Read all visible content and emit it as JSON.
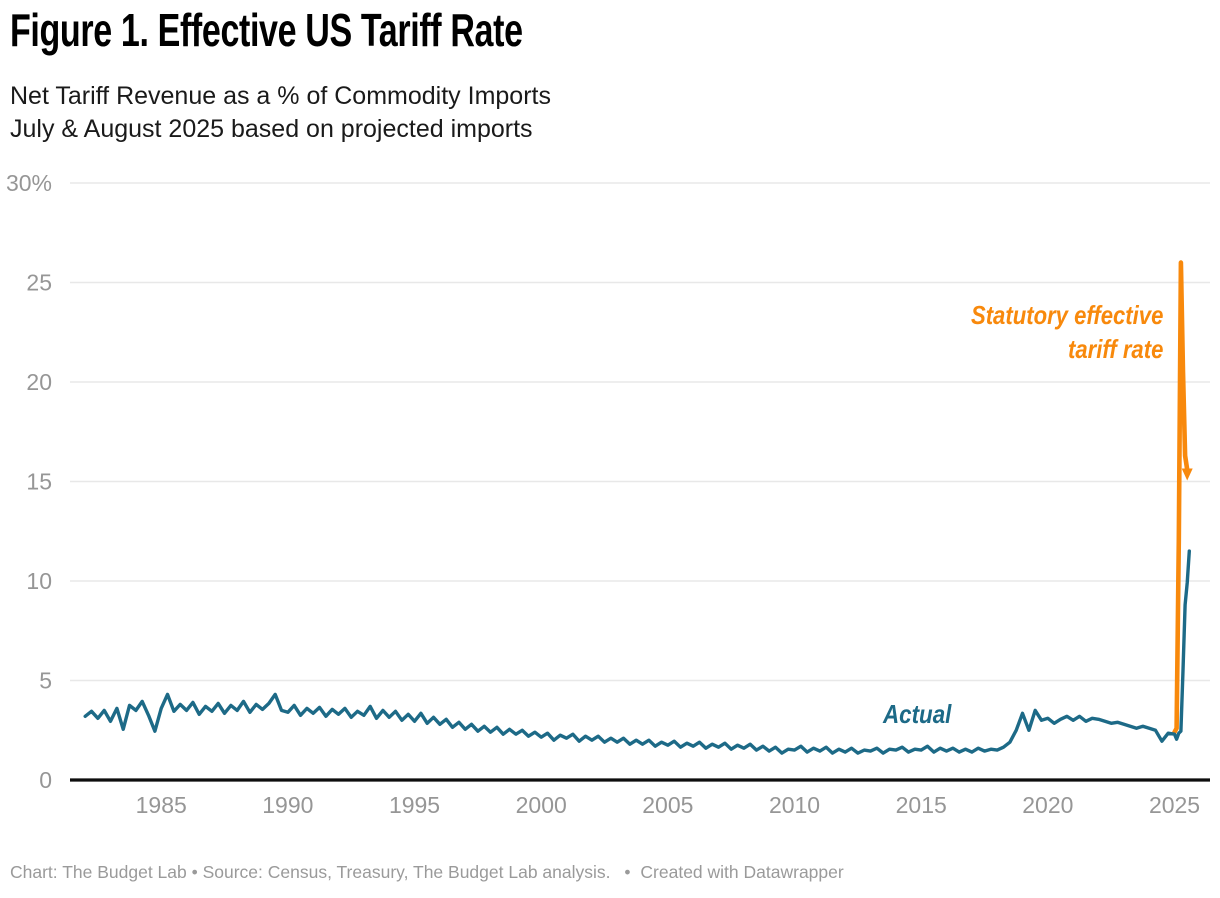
{
  "header": {
    "title": "Figure 1. Effective US Tariff Rate",
    "subtitle_line1": "Net Tariff Revenue as a % of Commodity Imports",
    "subtitle_line2": "July & August 2025 based on projected imports"
  },
  "annotations": {
    "statutory_line1": "Statutory effective",
    "statutory_line2": "tariff rate",
    "actual": "Actual"
  },
  "footer": {
    "credit_and_source": "Chart: The Budget Lab • Source: Census, Treasury, The Budget Lab analysis.",
    "bullet": "•",
    "datawrapper": "Created with Datawrapper"
  },
  "colors": {
    "actual": "#1d6a87",
    "statutory": "#f8890c",
    "grid": "#e8e8e8",
    "baseline": "#0d0d0d",
    "axis_text": "#969696",
    "title": "#000000",
    "subtitle": "#1a1a1a",
    "footer_text": "#9a9a9a"
  },
  "chart_data": {
    "type": "line",
    "title": "Figure 1. Effective US Tariff Rate",
    "subtitle": "Net Tariff Revenue as a % of Commodity Imports; July & August 2025 based on projected imports",
    "xlabel": "",
    "ylabel": "",
    "grid": "horizontal",
    "legend_position": "inline-annotations",
    "xlim": [
      1981.4,
      2026.4
    ],
    "ylim": [
      0,
      30
    ],
    "x_ticks": [
      1985,
      1990,
      1995,
      2000,
      2005,
      2010,
      2015,
      2020,
      2025
    ],
    "y_ticks": [
      {
        "value": 0,
        "label": "0"
      },
      {
        "value": 5,
        "label": "5"
      },
      {
        "value": 10,
        "label": "10"
      },
      {
        "value": 15,
        "label": "15"
      },
      {
        "value": 20,
        "label": "20"
      },
      {
        "value": 25,
        "label": "25"
      },
      {
        "value": 30,
        "label": "30%"
      }
    ],
    "series": [
      {
        "name": "Statutory effective tariff rate",
        "color": "#f8890c",
        "arrow_end": true,
        "points": [
          [
            2025.0,
            2.4
          ],
          [
            2025.083,
            2.6
          ],
          [
            2025.167,
            12.0
          ],
          [
            2025.25,
            26.0
          ],
          [
            2025.333,
            20.5
          ],
          [
            2025.417,
            16.3
          ],
          [
            2025.5,
            15.6
          ]
        ]
      },
      {
        "name": "Actual",
        "color": "#1d6a87",
        "arrow_end": false,
        "points": [
          [
            1982.0,
            3.2
          ],
          [
            1982.25,
            3.45
          ],
          [
            1982.5,
            3.1
          ],
          [
            1982.75,
            3.5
          ],
          [
            1983.0,
            2.95
          ],
          [
            1983.25,
            3.6
          ],
          [
            1983.5,
            2.55
          ],
          [
            1983.75,
            3.75
          ],
          [
            1984.0,
            3.5
          ],
          [
            1984.25,
            3.95
          ],
          [
            1984.5,
            3.25
          ],
          [
            1984.75,
            2.45
          ],
          [
            1985.0,
            3.6
          ],
          [
            1985.25,
            4.3
          ],
          [
            1985.5,
            3.45
          ],
          [
            1985.75,
            3.8
          ],
          [
            1986.0,
            3.5
          ],
          [
            1986.25,
            3.9
          ],
          [
            1986.5,
            3.3
          ],
          [
            1986.75,
            3.7
          ],
          [
            1987.0,
            3.45
          ],
          [
            1987.25,
            3.85
          ],
          [
            1987.5,
            3.35
          ],
          [
            1987.75,
            3.75
          ],
          [
            1988.0,
            3.5
          ],
          [
            1988.25,
            3.95
          ],
          [
            1988.5,
            3.4
          ],
          [
            1988.75,
            3.8
          ],
          [
            1989.0,
            3.55
          ],
          [
            1989.25,
            3.85
          ],
          [
            1989.5,
            4.3
          ],
          [
            1989.75,
            3.5
          ],
          [
            1990.0,
            3.4
          ],
          [
            1990.25,
            3.75
          ],
          [
            1990.5,
            3.25
          ],
          [
            1990.75,
            3.6
          ],
          [
            1991.0,
            3.35
          ],
          [
            1991.25,
            3.65
          ],
          [
            1991.5,
            3.2
          ],
          [
            1991.75,
            3.55
          ],
          [
            1992.0,
            3.3
          ],
          [
            1992.25,
            3.6
          ],
          [
            1992.5,
            3.15
          ],
          [
            1992.75,
            3.45
          ],
          [
            1993.0,
            3.25
          ],
          [
            1993.25,
            3.7
          ],
          [
            1993.5,
            3.1
          ],
          [
            1993.75,
            3.5
          ],
          [
            1994.0,
            3.15
          ],
          [
            1994.25,
            3.45
          ],
          [
            1994.5,
            3.0
          ],
          [
            1994.75,
            3.3
          ],
          [
            1995.0,
            2.95
          ],
          [
            1995.25,
            3.35
          ],
          [
            1995.5,
            2.85
          ],
          [
            1995.75,
            3.15
          ],
          [
            1996.0,
            2.8
          ],
          [
            1996.25,
            3.05
          ],
          [
            1996.5,
            2.65
          ],
          [
            1996.75,
            2.9
          ],
          [
            1997.0,
            2.55
          ],
          [
            1997.25,
            2.8
          ],
          [
            1997.5,
            2.45
          ],
          [
            1997.75,
            2.7
          ],
          [
            1998.0,
            2.4
          ],
          [
            1998.25,
            2.65
          ],
          [
            1998.5,
            2.3
          ],
          [
            1998.75,
            2.55
          ],
          [
            1999.0,
            2.3
          ],
          [
            1999.25,
            2.5
          ],
          [
            1999.5,
            2.2
          ],
          [
            1999.75,
            2.4
          ],
          [
            2000.0,
            2.15
          ],
          [
            2000.25,
            2.35
          ],
          [
            2000.5,
            2.0
          ],
          [
            2000.75,
            2.25
          ],
          [
            2001.0,
            2.1
          ],
          [
            2001.25,
            2.3
          ],
          [
            2001.5,
            1.95
          ],
          [
            2001.75,
            2.2
          ],
          [
            2002.0,
            2.0
          ],
          [
            2002.25,
            2.2
          ],
          [
            2002.5,
            1.9
          ],
          [
            2002.75,
            2.1
          ],
          [
            2003.0,
            1.9
          ],
          [
            2003.25,
            2.1
          ],
          [
            2003.5,
            1.8
          ],
          [
            2003.75,
            2.0
          ],
          [
            2004.0,
            1.8
          ],
          [
            2004.25,
            2.0
          ],
          [
            2004.5,
            1.7
          ],
          [
            2004.75,
            1.9
          ],
          [
            2005.0,
            1.75
          ],
          [
            2005.25,
            1.95
          ],
          [
            2005.5,
            1.65
          ],
          [
            2005.75,
            1.85
          ],
          [
            2006.0,
            1.7
          ],
          [
            2006.25,
            1.9
          ],
          [
            2006.5,
            1.6
          ],
          [
            2006.75,
            1.8
          ],
          [
            2007.0,
            1.65
          ],
          [
            2007.25,
            1.85
          ],
          [
            2007.5,
            1.55
          ],
          [
            2007.75,
            1.75
          ],
          [
            2008.0,
            1.6
          ],
          [
            2008.25,
            1.8
          ],
          [
            2008.5,
            1.5
          ],
          [
            2008.75,
            1.7
          ],
          [
            2009.0,
            1.45
          ],
          [
            2009.25,
            1.65
          ],
          [
            2009.5,
            1.35
          ],
          [
            2009.75,
            1.55
          ],
          [
            2010.0,
            1.5
          ],
          [
            2010.25,
            1.7
          ],
          [
            2010.5,
            1.4
          ],
          [
            2010.75,
            1.6
          ],
          [
            2011.0,
            1.45
          ],
          [
            2011.25,
            1.65
          ],
          [
            2011.5,
            1.35
          ],
          [
            2011.75,
            1.55
          ],
          [
            2012.0,
            1.4
          ],
          [
            2012.25,
            1.6
          ],
          [
            2012.5,
            1.35
          ],
          [
            2012.75,
            1.5
          ],
          [
            2013.0,
            1.45
          ],
          [
            2013.25,
            1.6
          ],
          [
            2013.5,
            1.35
          ],
          [
            2013.75,
            1.55
          ],
          [
            2014.0,
            1.5
          ],
          [
            2014.25,
            1.65
          ],
          [
            2014.5,
            1.4
          ],
          [
            2014.75,
            1.55
          ],
          [
            2015.0,
            1.5
          ],
          [
            2015.25,
            1.7
          ],
          [
            2015.5,
            1.4
          ],
          [
            2015.75,
            1.6
          ],
          [
            2016.0,
            1.45
          ],
          [
            2016.25,
            1.6
          ],
          [
            2016.5,
            1.4
          ],
          [
            2016.75,
            1.55
          ],
          [
            2017.0,
            1.4
          ],
          [
            2017.25,
            1.6
          ],
          [
            2017.5,
            1.45
          ],
          [
            2017.75,
            1.55
          ],
          [
            2018.0,
            1.5
          ],
          [
            2018.25,
            1.65
          ],
          [
            2018.5,
            1.9
          ],
          [
            2018.75,
            2.5
          ],
          [
            2019.0,
            3.35
          ],
          [
            2019.25,
            2.5
          ],
          [
            2019.5,
            3.5
          ],
          [
            2019.75,
            3.0
          ],
          [
            2020.0,
            3.1
          ],
          [
            2020.25,
            2.85
          ],
          [
            2020.5,
            3.05
          ],
          [
            2020.75,
            3.2
          ],
          [
            2021.0,
            3.0
          ],
          [
            2021.25,
            3.2
          ],
          [
            2021.5,
            2.95
          ],
          [
            2021.75,
            3.1
          ],
          [
            2022.0,
            3.05
          ],
          [
            2022.25,
            2.95
          ],
          [
            2022.5,
            2.85
          ],
          [
            2022.75,
            2.9
          ],
          [
            2023.0,
            2.8
          ],
          [
            2023.25,
            2.7
          ],
          [
            2023.5,
            2.6
          ],
          [
            2023.75,
            2.7
          ],
          [
            2024.0,
            2.6
          ],
          [
            2024.25,
            2.5
          ],
          [
            2024.5,
            1.95
          ],
          [
            2024.75,
            2.35
          ],
          [
            2025.0,
            2.3
          ],
          [
            2025.083,
            2.05
          ],
          [
            2025.167,
            2.35
          ],
          [
            2025.25,
            2.45
          ],
          [
            2025.333,
            5.5
          ],
          [
            2025.417,
            8.8
          ],
          [
            2025.5,
            9.9
          ],
          [
            2025.583,
            11.5
          ]
        ]
      }
    ]
  }
}
